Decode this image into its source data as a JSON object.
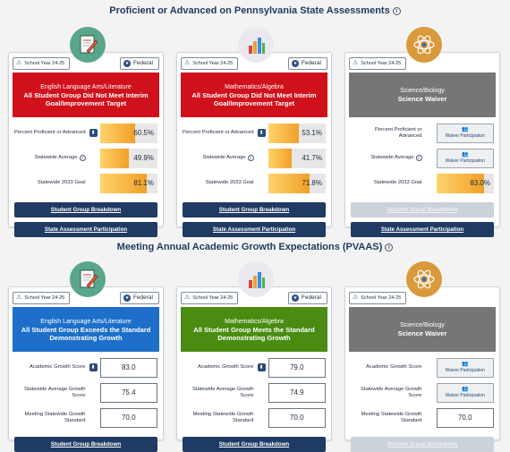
{
  "sections": {
    "proficiency_title": "Proficient or Advanced on Pennsylvania State Assessments",
    "growth_title": "Meeting Annual Academic Growth Expectations (PVAAS)"
  },
  "common": {
    "school_year": "School Year 24-25",
    "school_year_sci": "School Year 24-25",
    "federal": "Federal",
    "waiver_label": "Waiver Participation",
    "student_group_breakdown": "Student Group Breakdown",
    "state_assessment_participation": "State Assessment Participation"
  },
  "proficiency": {
    "ela": {
      "subject": "English Language Arts/Literature",
      "status": "All Student Group Did Not Meet Interim Goal/Improvement Target",
      "rows": [
        {
          "label": "Percent Proficient or Advanced",
          "value": "60.5%",
          "pct": 60.5
        },
        {
          "label": "Statewide Average",
          "value": "49.9%",
          "pct": 49.9
        },
        {
          "label": "Statewide 2033 Goal",
          "value": "81.1%",
          "pct": 81.1
        }
      ]
    },
    "math": {
      "subject": "Mathematics/Algebra",
      "status": "All Student Group Did Not Meet Interim Goal/Improvement Target",
      "rows": [
        {
          "label": "Percent Proficient or Advanced",
          "value": "53.1%",
          "pct": 53.1
        },
        {
          "label": "Statewide Average",
          "value": "41.7%",
          "pct": 41.7
        },
        {
          "label": "Statewide 2033 Goal",
          "value": "71.8%",
          "pct": 71.8
        }
      ]
    },
    "sci": {
      "subject": "Science/Biology",
      "status": "Science Waiver",
      "rows": [
        {
          "label": "Percent Proficient or Advanced"
        },
        {
          "label": "Statewide Average"
        },
        {
          "label": "Statewide 2033 Goal",
          "value": "83.0%",
          "pct": 83.0
        }
      ]
    }
  },
  "growth": {
    "ela": {
      "subject": "English Language Arts/Literature",
      "status": "All Student Group Exceeds the Standard Demonstrating Growth",
      "rows": [
        {
          "label": "Academic Growth Score",
          "value": "83.0"
        },
        {
          "label": "Statewide Average Growth Score",
          "value": "75.4"
        },
        {
          "label": "Meeting Statewide Growth Standard",
          "value": "70.0"
        }
      ]
    },
    "math": {
      "subject": "Mathematics/Algebra",
      "status": "All Student Group Meets the Standard Demonstrating Growth",
      "rows": [
        {
          "label": "Academic Growth Score",
          "value": "79.0"
        },
        {
          "label": "Statewide Average Growth Score",
          "value": "74.9"
        },
        {
          "label": "Meeting Statewide Growth Standard",
          "value": "70.0"
        }
      ]
    },
    "sci": {
      "subject": "Science/Biology",
      "status": "Science Waiver",
      "rows": [
        {
          "label": "Academic Growth Score"
        },
        {
          "label": "Statewide Average Growth Score"
        },
        {
          "label": "Meeting Statewide Growth Standard",
          "value": "70.0"
        }
      ]
    }
  },
  "colors": {
    "red": "#d0111b",
    "grey": "#767676",
    "blue": "#1d6fc9",
    "green": "#4a8c12",
    "navy": "#1f3a63"
  },
  "icons": {
    "ela": "pencil-paper-icon",
    "math": "bar-chart-icon",
    "sci": "atom-icon"
  }
}
